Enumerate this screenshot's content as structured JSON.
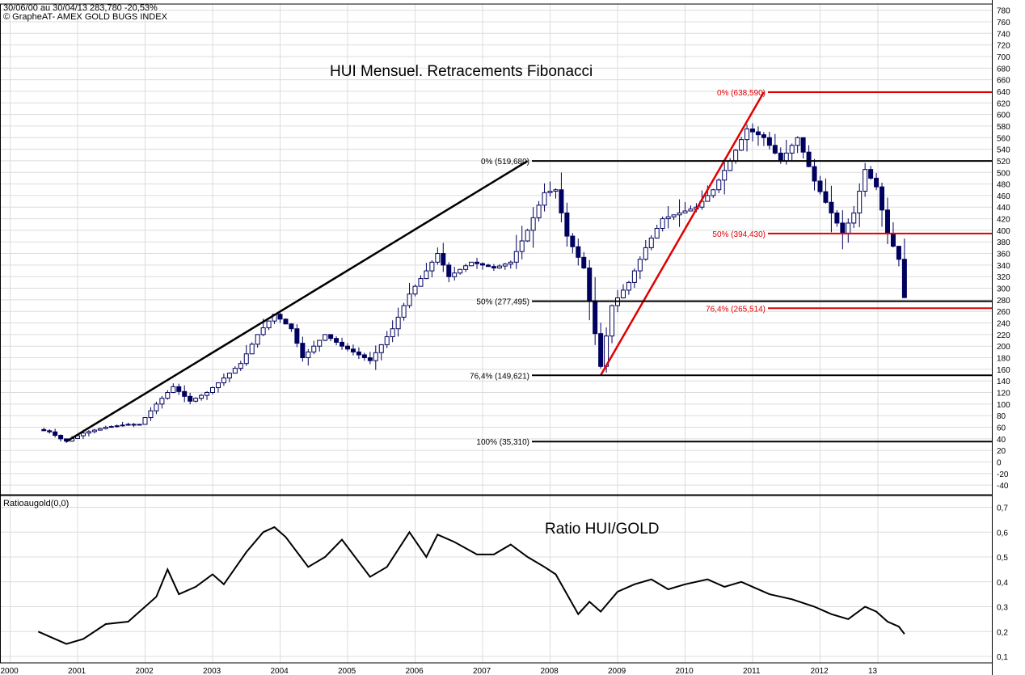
{
  "header": {
    "line1": "30/06/00 au 30/04/13  283,780  -20,53%",
    "line2": "© GrapheAT- AMEX GOLD BUGS INDEX"
  },
  "colors": {
    "background": "#ffffff",
    "grid": "#dcdcdc",
    "candle": "#00005e",
    "fib_black": "#000000",
    "fib_red": "#e00000",
    "ratio_line": "#000000"
  },
  "chart_data": [
    {
      "type": "candlestick",
      "title": "HUI Mensuel. Retracements Fibonacci",
      "frequency": "monthly",
      "x_ticks": [
        "2000",
        "2001",
        "2002",
        "2003",
        "2004",
        "2005",
        "2006",
        "2007",
        "2008",
        "2009",
        "2010",
        "2011",
        "2012",
        "13"
      ],
      "y_ticks": [
        -40,
        -20,
        0,
        20,
        40,
        60,
        80,
        100,
        120,
        140,
        160,
        180,
        200,
        220,
        240,
        260,
        280,
        300,
        320,
        340,
        360,
        380,
        400,
        420,
        440,
        460,
        480,
        500,
        520,
        540,
        560,
        580,
        600,
        620,
        640,
        660,
        680,
        700,
        720,
        740,
        760,
        780
      ],
      "ylim": [
        -50,
        790
      ],
      "close_path": [
        [
          "2000-06",
          56
        ],
        [
          "2000-08",
          52
        ],
        [
          "2000-10",
          40
        ],
        [
          "2000-11",
          36
        ],
        [
          "2001-02",
          50
        ],
        [
          "2001-06",
          60
        ],
        [
          "2001-10",
          65
        ],
        [
          "2001-12",
          65
        ],
        [
          "2002-03",
          100
        ],
        [
          "2002-06",
          130
        ],
        [
          "2002-09",
          105
        ],
        [
          "2002-12",
          120
        ],
        [
          "2003-03",
          145
        ],
        [
          "2003-06",
          170
        ],
        [
          "2003-09",
          220
        ],
        [
          "2003-12",
          255
        ],
        [
          "2004-03",
          230
        ],
        [
          "2004-05",
          180
        ],
        [
          "2004-09",
          220
        ],
        [
          "2004-12",
          200
        ],
        [
          "2005-05",
          175
        ],
        [
          "2005-09",
          230
        ],
        [
          "2005-12",
          290
        ],
        [
          "2006-03",
          330
        ],
        [
          "2006-05",
          360
        ],
        [
          "2006-07",
          320
        ],
        [
          "2006-11",
          345
        ],
        [
          "2007-03",
          335
        ],
        [
          "2007-06",
          345
        ],
        [
          "2007-09",
          400
        ],
        [
          "2007-12",
          465
        ],
        [
          "2008-02",
          470
        ],
        [
          "2008-04",
          390
        ],
        [
          "2008-07",
          335
        ],
        [
          "2008-10",
          165
        ],
        [
          "2008-12",
          270
        ],
        [
          "2009-03",
          310
        ],
        [
          "2009-06",
          370
        ],
        [
          "2009-09",
          420
        ],
        [
          "2009-12",
          430
        ],
        [
          "2010-03",
          440
        ],
        [
          "2010-06",
          470
        ],
        [
          "2010-09",
          520
        ],
        [
          "2010-12",
          575
        ],
        [
          "2011-03",
          560
        ],
        [
          "2011-06",
          520
        ],
        [
          "2011-09",
          560
        ],
        [
          "2011-12",
          485
        ],
        [
          "2012-03",
          430
        ],
        [
          "2012-05",
          395
        ],
        [
          "2012-07",
          430
        ],
        [
          "2012-09",
          505
        ],
        [
          "2012-11",
          475
        ],
        [
          "2013-01",
          395
        ],
        [
          "2013-03",
          350
        ],
        [
          "2013-04",
          283.78
        ]
      ],
      "trendlines": [
        {
          "from": [
            "2000-11",
            35.31
          ],
          "to": [
            "2007-09",
            519.68
          ],
          "color": "black"
        },
        {
          "from": [
            "2008-10",
            149.621
          ],
          "to": [
            "2011-03",
            638.59
          ],
          "color": "red"
        }
      ],
      "fib_levels": [
        {
          "label": "0% (519,680)",
          "value": 519.68,
          "color": "black"
        },
        {
          "label": "50% (277,495)",
          "value": 277.495,
          "color": "black"
        },
        {
          "label": "76,4% (149,621)",
          "value": 149.621,
          "color": "black"
        },
        {
          "label": "100% (35,310)",
          "value": 35.31,
          "color": "black"
        },
        {
          "label": "0% (638,590)",
          "value": 638.59,
          "color": "red"
        },
        {
          "label": "50% (394,430)",
          "value": 394.43,
          "color": "red"
        },
        {
          "label": "76,4% (265,514)",
          "value": 265.514,
          "color": "red"
        }
      ]
    },
    {
      "type": "line",
      "name": "Ratioaugold(0,0)",
      "title": "Ratio HUI/GOLD",
      "y_ticks": [
        0.1,
        0.2,
        0.3,
        0.4,
        0.5,
        0.6,
        0.7
      ],
      "ylim": [
        0.08,
        0.73
      ],
      "points": [
        [
          "2000-06",
          0.2
        ],
        [
          "2000-08",
          0.18
        ],
        [
          "2000-11",
          0.15
        ],
        [
          "2001-02",
          0.17
        ],
        [
          "2001-06",
          0.23
        ],
        [
          "2001-10",
          0.24
        ],
        [
          "2002-03",
          0.34
        ],
        [
          "2002-05",
          0.45
        ],
        [
          "2002-07",
          0.35
        ],
        [
          "2002-10",
          0.38
        ],
        [
          "2003-01",
          0.43
        ],
        [
          "2003-03",
          0.39
        ],
        [
          "2003-07",
          0.52
        ],
        [
          "2003-10",
          0.6
        ],
        [
          "2003-12",
          0.62
        ],
        [
          "2004-02",
          0.58
        ],
        [
          "2004-04",
          0.52
        ],
        [
          "2004-06",
          0.46
        ],
        [
          "2004-09",
          0.5
        ],
        [
          "2004-12",
          0.57
        ],
        [
          "2005-05",
          0.42
        ],
        [
          "2005-08",
          0.46
        ],
        [
          "2005-12",
          0.6
        ],
        [
          "2006-03",
          0.5
        ],
        [
          "2006-05",
          0.59
        ],
        [
          "2006-08",
          0.56
        ],
        [
          "2006-12",
          0.51
        ],
        [
          "2007-03",
          0.51
        ],
        [
          "2007-06",
          0.55
        ],
        [
          "2007-09",
          0.5
        ],
        [
          "2007-12",
          0.46
        ],
        [
          "2008-02",
          0.43
        ],
        [
          "2008-04",
          0.35
        ],
        [
          "2008-06",
          0.27
        ],
        [
          "2008-08",
          0.32
        ],
        [
          "2008-10",
          0.28
        ],
        [
          "2009-01",
          0.36
        ],
        [
          "2009-04",
          0.39
        ],
        [
          "2009-07",
          0.41
        ],
        [
          "2009-10",
          0.37
        ],
        [
          "2010-01",
          0.39
        ],
        [
          "2010-05",
          0.41
        ],
        [
          "2010-08",
          0.38
        ],
        [
          "2010-11",
          0.4
        ],
        [
          "2011-01",
          0.38
        ],
        [
          "2011-04",
          0.35
        ],
        [
          "2011-08",
          0.33
        ],
        [
          "2011-12",
          0.3
        ],
        [
          "2012-03",
          0.27
        ],
        [
          "2012-06",
          0.25
        ],
        [
          "2012-09",
          0.3
        ],
        [
          "2012-11",
          0.28
        ],
        [
          "2013-01",
          0.24
        ],
        [
          "2013-03",
          0.22
        ],
        [
          "2013-04",
          0.19
        ]
      ]
    }
  ]
}
